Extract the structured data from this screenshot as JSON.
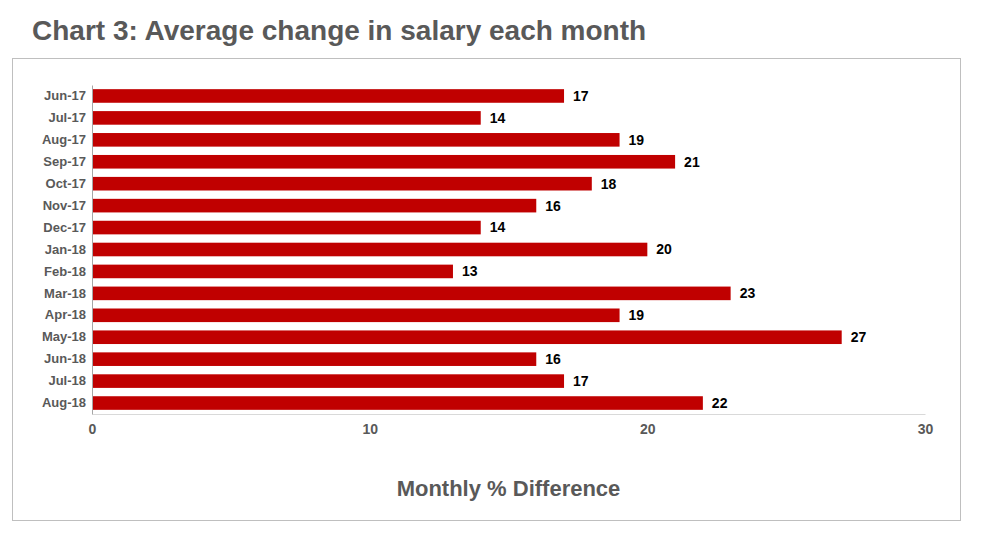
{
  "chart_data": {
    "type": "bar",
    "orientation": "horizontal",
    "title": "Chart 3: Average change in salary each month",
    "xlabel": "Monthly % Difference",
    "categories": [
      "Jun-17",
      "Jul-17",
      "Aug-17",
      "Sep-17",
      "Oct-17",
      "Nov-17",
      "Dec-17",
      "Jan-18",
      "Feb-18",
      "Mar-18",
      "Apr-18",
      "May-18",
      "Jun-18",
      "Jul-18",
      "Aug-18"
    ],
    "values": [
      17,
      14,
      19,
      21,
      18,
      16,
      14,
      20,
      13,
      23,
      19,
      27,
      16,
      17,
      22
    ],
    "color": "#c00000",
    "xlim": [
      0,
      30
    ],
    "xticks": [
      0,
      10,
      20,
      30
    ],
    "data_labels": true,
    "grid": false
  }
}
